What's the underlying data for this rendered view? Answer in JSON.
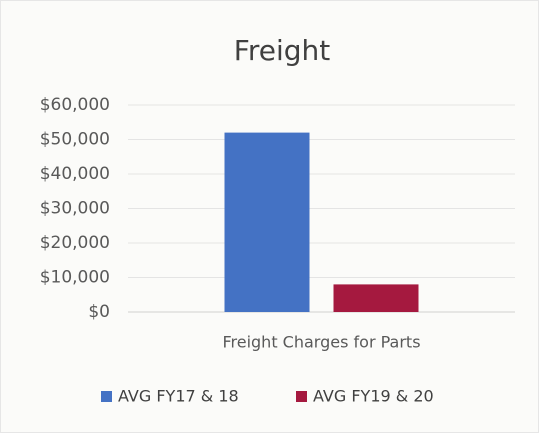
{
  "chart_data": {
    "type": "bar",
    "title": "Freight",
    "categories": [
      "Freight Charges for Parts"
    ],
    "series": [
      {
        "name": "AVG FY17 & 18",
        "color": "#4472c4",
        "values": [
          52000
        ]
      },
      {
        "name": "AVG FY19 & 20",
        "color": "#a5193f",
        "values": [
          8000
        ]
      }
    ],
    "ylim": [
      0,
      60000
    ],
    "yticks": [
      {
        "value": 0,
        "label": "$0"
      },
      {
        "value": 10000,
        "label": "$10,000"
      },
      {
        "value": 20000,
        "label": "$20,000"
      },
      {
        "value": 30000,
        "label": "$30,000"
      },
      {
        "value": 40000,
        "label": "$40,000"
      },
      {
        "value": 50000,
        "label": "$50,000"
      },
      {
        "value": 60000,
        "label": "$60,000"
      }
    ],
    "grid": true,
    "legend": "bottom"
  }
}
